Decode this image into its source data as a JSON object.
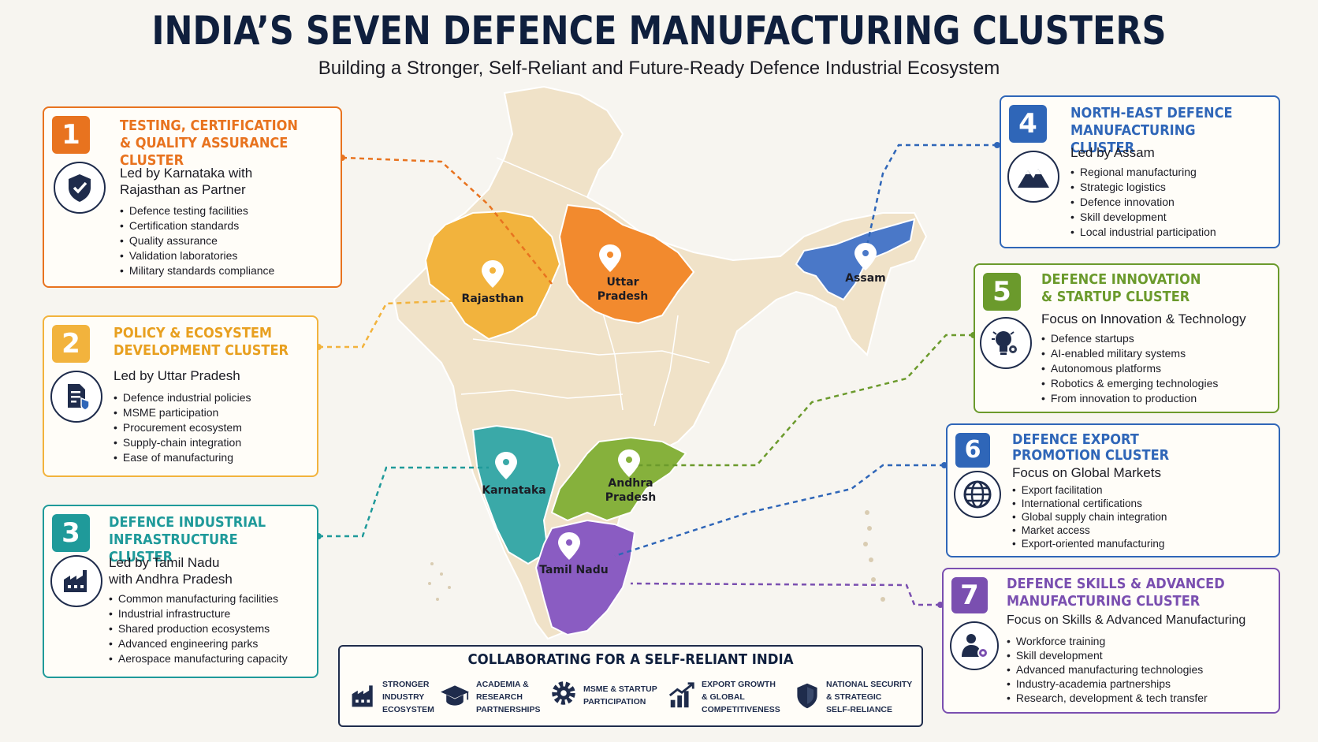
{
  "header": {
    "title": "INDIA’S SEVEN DEFENCE MANUFACTURING CLUSTERS",
    "subtitle": "Building a Stronger, Self-Reliant and Future-Ready Defence Industrial Ecosystem"
  },
  "map": {
    "states": [
      {
        "name": "Rajasthan",
        "color": "#f2b33d"
      },
      {
        "name": "Uttar Pradesh",
        "line1": "Uttar",
        "line2": "Pradesh",
        "color": "#f28a2e"
      },
      {
        "name": "Assam",
        "color": "#4a78c8"
      },
      {
        "name": "Karnataka",
        "color": "#3aa9a8"
      },
      {
        "name": "Andhra Pradesh",
        "line1": "Andhra",
        "line2": "Pradesh",
        "color": "#86b13c"
      },
      {
        "name": "Tamil Nadu",
        "color": "#8a5cc2"
      }
    ],
    "base_color": "#f0e2c8"
  },
  "clusters": [
    {
      "num": "1",
      "title1": "Testing, Certification",
      "title2": "& Quality Assurance Cluster",
      "lead1": "Led by Karnataka with",
      "lead2": "Rajasthan as Partner",
      "color": "#e8731f",
      "icon": "shield-check-icon",
      "items": [
        "Defence testing facilities",
        "Certification standards",
        "Quality assurance",
        "Validation laboratories",
        "Military standards compliance"
      ]
    },
    {
      "num": "2",
      "title1": "Policy & Ecosystem",
      "title2": "Development Cluster",
      "lead1": "Led by Uttar Pradesh",
      "lead2": "",
      "color": "#f2b33d",
      "icon": "policy-document-icon",
      "items": [
        "Defence industrial policies",
        "MSME participation",
        "Procurement ecosystem",
        "Supply-chain integration",
        "Ease of manufacturing"
      ]
    },
    {
      "num": "3",
      "title1": "Defence Industrial",
      "title2": "Infrastructure Cluster",
      "lead1": "Led by Tamil Nadu",
      "lead2": "with Andhra Pradesh",
      "color": "#1f9a9a",
      "icon": "factory-icon",
      "items": [
        "Common manufacturing facilities",
        "Industrial infrastructure",
        "Shared production ecosystems",
        "Advanced engineering parks",
        "Aerospace manufacturing capacity"
      ]
    },
    {
      "num": "4",
      "title1": "North-East Defence",
      "title2": "Manufacturing Cluster",
      "lead1": "Led by Assam",
      "lead2": "",
      "color": "#2f66b8",
      "icon": "mountains-icon",
      "items": [
        "Regional manufacturing",
        "Strategic logistics",
        "Defence innovation",
        "Skill development",
        "Local industrial participation"
      ]
    },
    {
      "num": "5",
      "title1": "Defence Innovation",
      "title2": "& Startup Cluster",
      "lead1": "Focus on Innovation & Technology",
      "lead2": "",
      "color": "#6b9a2c",
      "icon": "lightbulb-gear-icon",
      "items": [
        "Defence startups",
        "AI-enabled military systems",
        "Autonomous platforms",
        "Robotics & emerging technologies",
        "From innovation to production"
      ]
    },
    {
      "num": "6",
      "title1": "Defence Export",
      "title2": "Promotion Cluster",
      "lead1": "Focus on Global Markets",
      "lead2": "",
      "color": "#2f66b8",
      "icon": "globe-icon",
      "items": [
        "Export facilitation",
        "International certifications",
        "Global supply chain integration",
        "Market access",
        "Export-oriented manufacturing"
      ]
    },
    {
      "num": "7",
      "title1": "Defence Skills & Advanced",
      "title2": "Manufacturing Cluster",
      "lead1": "Focus on Skills & Advanced Manufacturing",
      "lead2": "",
      "color": "#7a4fb0",
      "icon": "worker-gear-icon",
      "items": [
        "Workforce training",
        "Skill development",
        "Advanced manufacturing technologies",
        "Industry-academia partnerships",
        "Research, development & tech transfer"
      ]
    }
  ],
  "footer": {
    "title": "COLLABORATING FOR A SELF-RELIANT INDIA",
    "items": [
      {
        "line1": "Stronger",
        "line2": "Industry",
        "line3": "Ecosystem",
        "icon": "factory-icon"
      },
      {
        "line1": "Academia &",
        "line2": "Research",
        "line3": "Partnerships",
        "icon": "graduation-cap-icon"
      },
      {
        "line1": "MSME & Startup",
        "line2": "Participation",
        "line3": "",
        "icon": "gear-icon"
      },
      {
        "line1": "Export Growth",
        "line2": "& Global",
        "line3": "Competitiveness",
        "icon": "growth-chart-icon"
      },
      {
        "line1": "National Security",
        "line2": "& Strategic",
        "line3": "Self-Reliance",
        "icon": "shield-icon"
      }
    ]
  }
}
